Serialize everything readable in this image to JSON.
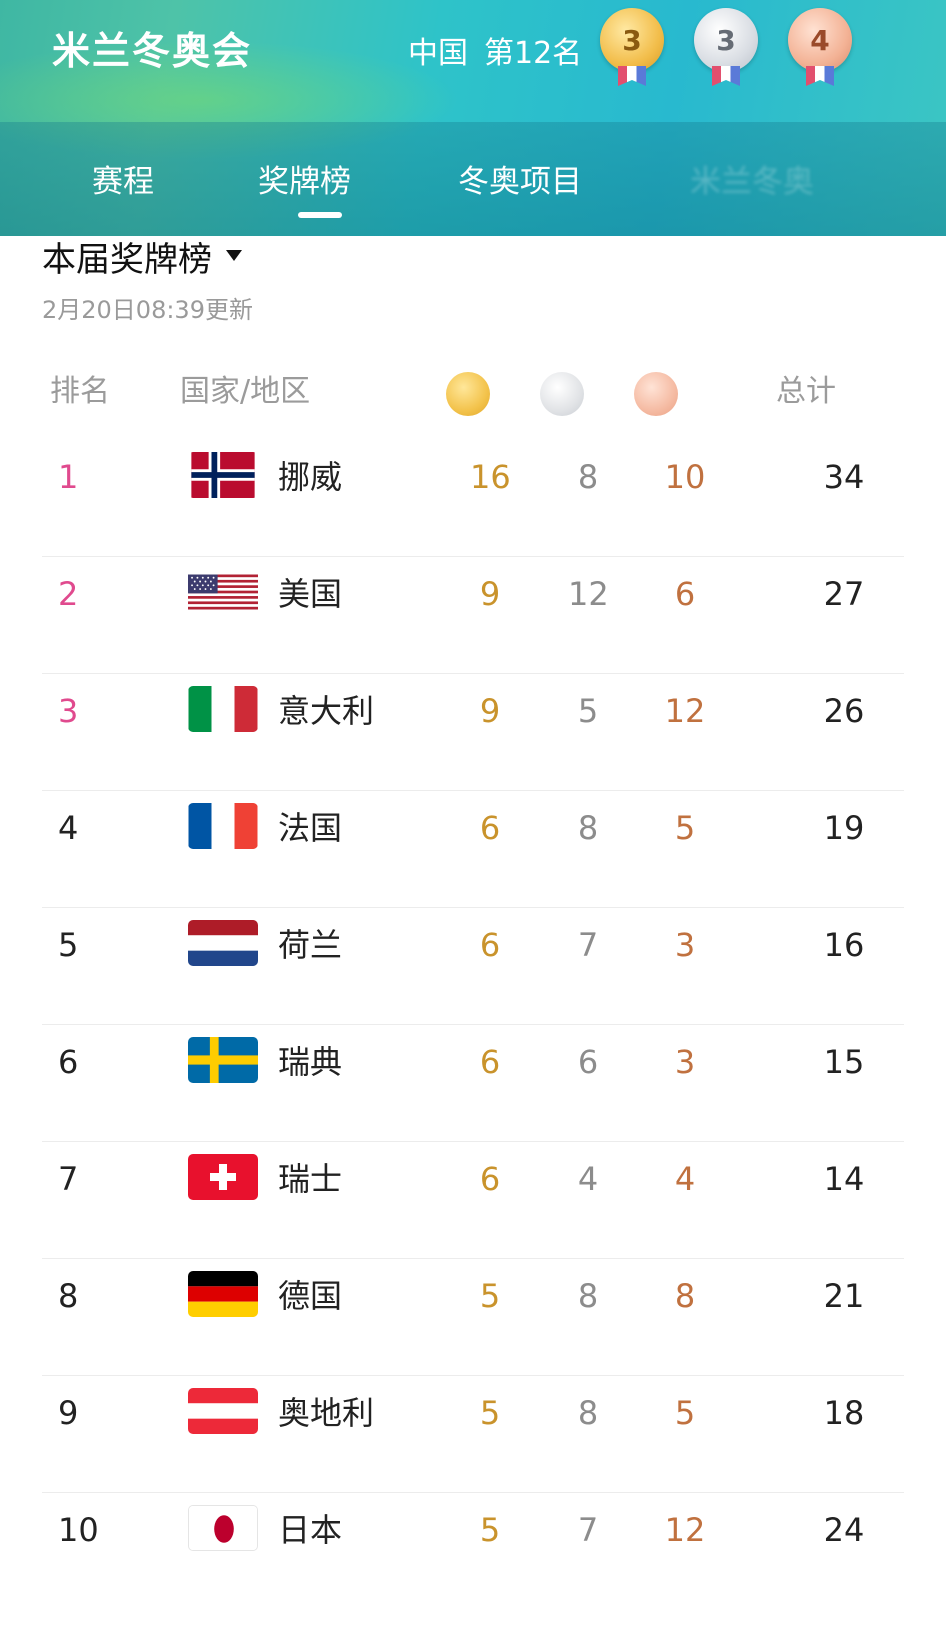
{
  "header": {
    "app_title": "米兰冬奥会",
    "country": "中国",
    "rank_text": "第12名",
    "medals": {
      "gold": "3",
      "silver": "3",
      "bronze": "4"
    }
  },
  "tabs": [
    {
      "label": "赛程"
    },
    {
      "label": "奖牌榜",
      "active": true
    },
    {
      "label": "冬奥项目"
    },
    {
      "label": "米兰冬奥"
    }
  ],
  "section": {
    "title": "本届奖牌榜",
    "updated": "2月20日08:39更新"
  },
  "table": {
    "headers": {
      "rank": "排名",
      "country": "国家/地区",
      "total": "总计"
    },
    "rows": [
      {
        "rank": "1",
        "flag": "norway-flag-icon",
        "country": "挪威",
        "gold": "16",
        "silver": "8",
        "bronze": "10",
        "total": "34"
      },
      {
        "rank": "2",
        "flag": "usa-flag-icon",
        "country": "美国",
        "gold": "9",
        "silver": "12",
        "bronze": "6",
        "total": "27"
      },
      {
        "rank": "3",
        "flag": "italy-flag-icon",
        "country": "意大利",
        "gold": "9",
        "silver": "5",
        "bronze": "12",
        "total": "26"
      },
      {
        "rank": "4",
        "flag": "france-flag-icon",
        "country": "法国",
        "gold": "6",
        "silver": "8",
        "bronze": "5",
        "total": "19"
      },
      {
        "rank": "5",
        "flag": "netherlands-flag-icon",
        "country": "荷兰",
        "gold": "6",
        "silver": "7",
        "bronze": "3",
        "total": "16"
      },
      {
        "rank": "6",
        "flag": "sweden-flag-icon",
        "country": "瑞典",
        "gold": "6",
        "silver": "6",
        "bronze": "3",
        "total": "15"
      },
      {
        "rank": "7",
        "flag": "switzerland-flag-icon",
        "country": "瑞士",
        "gold": "6",
        "silver": "4",
        "bronze": "4",
        "total": "14"
      },
      {
        "rank": "8",
        "flag": "germany-flag-icon",
        "country": "德国",
        "gold": "5",
        "silver": "8",
        "bronze": "8",
        "total": "21"
      },
      {
        "rank": "9",
        "flag": "austria-flag-icon",
        "country": "奥地利",
        "gold": "5",
        "silver": "8",
        "bronze": "5",
        "total": "18"
      },
      {
        "rank": "10",
        "flag": "japan-flag-icon",
        "country": "日本",
        "gold": "5",
        "silver": "7",
        "bronze": "12",
        "total": "24"
      }
    ]
  },
  "colors": {
    "top_rank": "#e04a8e",
    "gold_text": "#c9932c",
    "silver_text": "#8c8c8c",
    "bronze_text": "#c0713f"
  }
}
